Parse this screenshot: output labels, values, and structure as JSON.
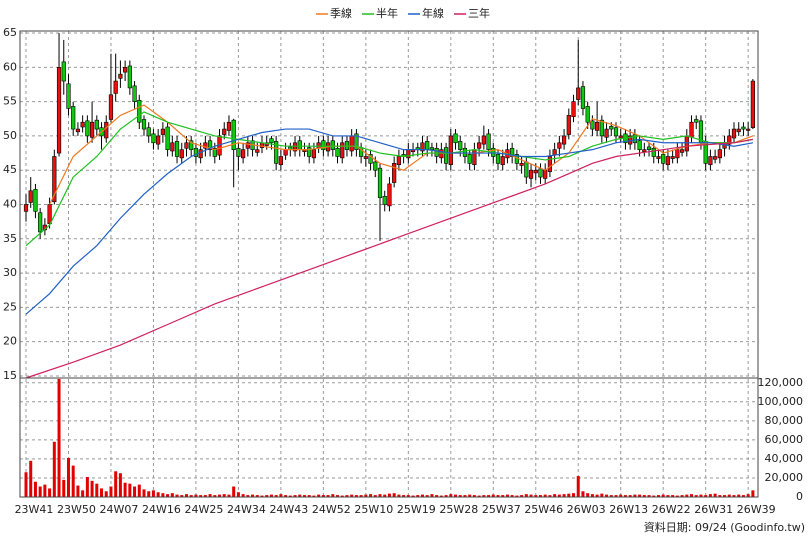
{
  "chart_data": [
    {
      "type": "candlestick",
      "legend": "top",
      "grid": true,
      "up_color": "#e81010",
      "down_color": "#10c810",
      "ylim": [
        14.7,
        65.3
      ],
      "yticks": [
        15,
        20,
        25,
        30,
        35,
        40,
        45,
        50,
        55,
        60,
        65
      ],
      "open": [
        39,
        40.3,
        42.2,
        38.8,
        36.3,
        37.2,
        40.4,
        47.5,
        60.8,
        57.6,
        54.3,
        50.6,
        51.3,
        52.2,
        49.8,
        52.3,
        51.2,
        49.7,
        52.4,
        56.2,
        58.4,
        59.3,
        60.2,
        57.3,
        55.2,
        52.4,
        51.2,
        50.3,
        48.8,
        50.2,
        51.3,
        47.8,
        49.2,
        46.8,
        48.2,
        49.3,
        48.2,
        46.8,
        48.2,
        49.3,
        48.2,
        47.2,
        50.2,
        50.8,
        52.3,
        48.2,
        46.8,
        48.2,
        49.3,
        47.6,
        48.3,
        48.6,
        49.6,
        49.2,
        45.8,
        47.2,
        48.4,
        47.8,
        49.3,
        47.7,
        48.3,
        46.8,
        48.2,
        49.3,
        47.8,
        49.3,
        48.2,
        46.8,
        49.2,
        47.8,
        50.3,
        48.3,
        46.7,
        47.3,
        46.2,
        45.3,
        41.2,
        39.8,
        43.2,
        45.8,
        47.3,
        46.8,
        47.7,
        48.3,
        47.8,
        49.2,
        48.3,
        48.2,
        46.8,
        48.3,
        45.8,
        50.3,
        49.2,
        48.2,
        47.3,
        45.8,
        48.2,
        48.8,
        50.3,
        48.2,
        47.3,
        45.8,
        46.8,
        48.2,
        47.3,
        45.7,
        46.2,
        43.8,
        44.6,
        45.2,
        43.8,
        44.8,
        47.2,
        48.2,
        48.8,
        50.2,
        52.8,
        55.3,
        57.2,
        54.3,
        52.2,
        50.8,
        52.3,
        49.8,
        51.4,
        51.2,
        49.7,
        50.3,
        48.8,
        50.2,
        49.3,
        47.7,
        48.4,
        48.2,
        46.7,
        47.3,
        45.8,
        46.7,
        46.8,
        47.6,
        47.8,
        49.8,
        52.4,
        52.2,
        49.2,
        45.8,
        46.6,
        46.8,
        48.2,
        48.8,
        49.7,
        50.6,
        51.3,
        50.8,
        51.2
      ],
      "high": [
        41.5,
        44,
        43,
        39.5,
        38,
        41,
        48,
        65,
        64,
        59,
        55,
        52,
        53,
        53,
        55,
        53,
        52,
        53,
        62,
        62,
        61,
        61,
        61,
        58,
        56,
        53,
        52,
        51,
        51,
        52,
        52,
        50,
        50,
        49,
        50,
        50,
        49,
        49,
        50,
        50,
        49,
        51,
        52,
        53,
        52.5,
        49,
        49,
        50,
        50,
        49,
        50,
        50,
        50,
        50,
        48,
        49,
        49,
        50,
        50,
        49,
        49,
        49,
        50,
        50,
        50,
        50,
        49,
        50,
        50,
        51,
        51,
        49,
        48,
        48,
        47,
        46,
        42,
        44,
        47,
        48,
        48,
        49,
        49,
        49,
        50,
        50,
        49,
        49,
        49,
        49,
        51,
        51,
        50,
        49,
        48,
        49,
        50,
        51.5,
        51,
        49,
        48,
        48,
        49,
        49,
        48,
        47,
        47,
        46,
        46,
        46,
        46,
        48,
        49,
        50,
        51,
        54,
        56,
        64,
        58,
        55,
        53,
        55,
        53,
        52,
        52,
        52,
        51,
        51,
        51,
        51,
        50,
        49,
        49,
        49,
        48,
        48,
        48,
        48,
        49,
        49,
        51,
        53,
        53,
        53,
        50,
        48,
        48,
        49,
        50,
        51,
        52,
        52,
        52,
        52,
        58.3
      ],
      "low": [
        37.5,
        39.5,
        38,
        35,
        35.5,
        36.5,
        40,
        47,
        56,
        53,
        50,
        50,
        50.5,
        49,
        49,
        50,
        48,
        49,
        52,
        55,
        57,
        58,
        56,
        54,
        51,
        50,
        49,
        48,
        48,
        49,
        47,
        47,
        46,
        46,
        47,
        47,
        46,
        46,
        47,
        47,
        46,
        46.5,
        49.5,
        50,
        42.5,
        45,
        46,
        47,
        47,
        47,
        47.5,
        48,
        48,
        45,
        45,
        46.5,
        47,
        47,
        47,
        47,
        46,
        46,
        47.5,
        47,
        47,
        47,
        46,
        46,
        47,
        47,
        47,
        46,
        45.5,
        45,
        44,
        34.7,
        39,
        39,
        42.5,
        45,
        46,
        46,
        47,
        47,
        47,
        47,
        47,
        46,
        46,
        45,
        45,
        48,
        47,
        46,
        45,
        45,
        47,
        48,
        47,
        46,
        45,
        45,
        46,
        46,
        45,
        44.5,
        43,
        42.5,
        43.5,
        43,
        43,
        44,
        46,
        47,
        48,
        49.5,
        52,
        54.5,
        53,
        51,
        50,
        50,
        49,
        49,
        50,
        49,
        49,
        48,
        48,
        48,
        47,
        47,
        47,
        46,
        46,
        45,
        45,
        46,
        46,
        47,
        47,
        49,
        51,
        48,
        45,
        45,
        46,
        46,
        47,
        48,
        49,
        50,
        50,
        50,
        51
      ],
      "close": [
        40,
        42,
        39,
        36,
        37,
        40,
        47,
        60,
        58,
        54,
        51,
        51,
        52,
        50,
        52,
        51,
        50,
        52,
        56,
        58,
        59,
        60,
        57,
        55,
        52,
        51,
        50,
        49,
        50,
        51,
        48,
        49,
        47,
        48,
        49,
        48,
        47,
        48,
        49,
        48,
        47,
        50,
        51,
        52,
        48,
        47,
        48,
        49,
        48,
        48,
        49,
        49,
        49,
        46,
        47,
        48,
        48,
        49,
        48,
        48,
        47,
        48,
        49,
        48,
        49,
        48,
        47,
        49,
        48,
        50,
        48,
        47,
        47,
        46,
        45,
        41,
        40,
        43,
        46,
        47,
        47,
        48,
        48,
        48,
        49,
        48,
        48,
        47,
        48,
        46,
        50,
        49,
        48,
        47,
        46,
        48,
        49,
        50,
        48,
        47,
        46,
        47,
        48,
        47,
        46,
        46,
        44,
        45,
        45,
        44,
        45,
        47,
        48,
        49,
        50,
        53,
        55,
        57,
        54,
        52,
        51,
        52,
        50,
        51,
        51,
        50,
        50,
        49,
        50,
        49,
        48,
        48,
        48,
        47,
        47,
        46,
        47,
        47,
        48,
        48,
        50,
        52,
        52,
        49,
        46,
        47,
        47,
        48,
        49,
        50,
        51,
        51,
        51,
        51,
        58
      ],
      "series": [
        {
          "name": "季線",
          "color": "#f07820",
          "x": [
            5,
            10,
            15,
            20,
            25,
            30,
            35,
            40,
            45,
            50,
            55,
            60,
            65,
            70,
            75,
            80,
            85,
            90,
            95,
            100,
            105,
            110,
            115,
            120,
            125,
            130,
            135,
            140,
            145,
            150,
            154
          ],
          "values": [
            40,
            47,
            50,
            53,
            54.5,
            52,
            49,
            48,
            49,
            48.5,
            48,
            48,
            48.5,
            48.5,
            46,
            45,
            47.5,
            47.5,
            47.5,
            48,
            46.5,
            45,
            47.5,
            52.5,
            51.5,
            50,
            47.5,
            48.5,
            49,
            49,
            50
          ]
        },
        {
          "name": "半年",
          "color": "#20c020",
          "x": [
            0,
            5,
            10,
            15,
            20,
            25,
            30,
            35,
            40,
            45,
            50,
            55,
            60,
            65,
            70,
            75,
            80,
            85,
            90,
            95,
            100,
            105,
            110,
            115,
            120,
            125,
            130,
            135,
            140,
            145,
            150,
            154
          ],
          "values": [
            34,
            37,
            44,
            47,
            51,
            53.5,
            52,
            51,
            50,
            49.5,
            49,
            48.5,
            48.5,
            48.5,
            48.5,
            47.5,
            47,
            47.5,
            47.5,
            48,
            47.5,
            47,
            46.5,
            47,
            48.5,
            49.5,
            50,
            49.5,
            50,
            49,
            49,
            49.5
          ]
        },
        {
          "name": "年線",
          "color": "#2060c8",
          "x": [
            0,
            5,
            10,
            15,
            20,
            25,
            30,
            35,
            40,
            45,
            50,
            55,
            60,
            65,
            70,
            75,
            80,
            85,
            90,
            95,
            100,
            105,
            110,
            115,
            120,
            125,
            130,
            135,
            140,
            145,
            150,
            154
          ],
          "values": [
            24,
            27,
            31,
            34,
            38,
            41.5,
            44.5,
            47,
            48.5,
            49.5,
            50.5,
            51,
            51,
            50,
            50,
            49,
            48,
            48,
            47.5,
            47.5,
            47.5,
            47,
            47,
            47.5,
            48,
            49,
            49.5,
            49,
            49,
            49,
            48.5,
            49
          ]
        },
        {
          "name": "三年",
          "color": "#d02060",
          "x": [
            0,
            10,
            20,
            30,
            40,
            50,
            60,
            70,
            80,
            90,
            100,
            110,
            115,
            120,
            125,
            130,
            140,
            150,
            154
          ],
          "values": [
            14.7,
            17,
            19.5,
            22.5,
            25.5,
            28,
            30.5,
            33,
            35.5,
            38,
            40.5,
            43,
            44.5,
            46,
            47,
            47.5,
            48.5,
            49,
            49.5
          ]
        }
      ]
    },
    {
      "type": "bar",
      "grid": true,
      "color": "#e00000",
      "categories": [
        "23W41",
        null,
        null,
        null,
        null,
        null,
        null,
        null,
        null,
        "23W50",
        null,
        null,
        null,
        null,
        null,
        null,
        null,
        null,
        "24W07",
        null,
        null,
        null,
        null,
        null,
        null,
        null,
        null,
        "24W16",
        null,
        null,
        null,
        null,
        null,
        null,
        null,
        null,
        "24W25",
        null,
        null,
        null,
        null,
        null,
        null,
        null,
        null,
        "24W34",
        null,
        null,
        null,
        null,
        null,
        null,
        null,
        null,
        "24W43",
        null,
        null,
        null,
        null,
        null,
        null,
        null,
        null,
        "24W52",
        null,
        null,
        null,
        null,
        null,
        null,
        null,
        null,
        "25W10",
        null,
        null,
        null,
        null,
        null,
        null,
        null,
        null,
        "25W19",
        null,
        null,
        null,
        null,
        null,
        null,
        null,
        null,
        "25W28",
        null,
        null,
        null,
        null,
        null,
        null,
        null,
        null,
        "25W37",
        null,
        null,
        null,
        null,
        null,
        null,
        null,
        null,
        "25W46",
        null,
        null,
        null,
        null,
        null,
        null,
        null,
        null,
        "26W03",
        null,
        null,
        null,
        null,
        null,
        null,
        null,
        null,
        "26W13",
        null,
        null,
        null,
        null,
        null,
        null,
        null,
        null,
        "26W22",
        null,
        null,
        null,
        null,
        null,
        null,
        null,
        null,
        "26W31",
        null,
        null,
        null,
        null,
        null,
        null,
        null,
        null,
        "26W39",
        null
      ],
      "values": [
        26000,
        38000,
        16000,
        11000,
        13000,
        9000,
        58000,
        124000,
        18000,
        41000,
        33000,
        12000,
        7000,
        21000,
        17000,
        14000,
        9000,
        6000,
        11000,
        27000,
        25000,
        15000,
        14000,
        11000,
        13000,
        8000,
        6000,
        7000,
        5000,
        4000,
        3000,
        4000,
        2500,
        2000,
        3000,
        2000,
        2500,
        2000,
        2000,
        3000,
        2000,
        2500,
        3000,
        2500,
        11000,
        5000,
        3000,
        2000,
        2500,
        2000,
        1500,
        2000,
        2500,
        2000,
        3000,
        2000,
        1500,
        2000,
        2500,
        2000,
        2000,
        1500,
        2500,
        2000,
        2000,
        3000,
        2000,
        1500,
        2000,
        2500,
        2000,
        2000,
        2500,
        3000,
        2000,
        3000,
        2500,
        3500,
        4000,
        2500,
        2000,
        2000,
        1500,
        2000,
        2500,
        2000,
        3000,
        2000,
        1500,
        2000,
        3000,
        2500,
        2000,
        2000,
        2500,
        2000,
        1500,
        2000,
        2000,
        2500,
        2000,
        2000,
        2500,
        2000,
        1500,
        2000,
        3000,
        2500,
        2000,
        2000,
        2500,
        2000,
        3000,
        2500,
        3000,
        3500,
        4000,
        22000,
        6000,
        4000,
        3000,
        2500,
        3500,
        2500,
        2000,
        2000,
        2500,
        2000,
        2000,
        2500,
        2500,
        2000,
        2000,
        1500,
        2000,
        2500,
        2000,
        2000,
        1500,
        2000,
        2500,
        3000,
        2000,
        2500,
        2000,
        3000,
        3500,
        2000,
        2000,
        2500,
        2000,
        2500,
        2000,
        3000,
        7000
      ],
      "ylim": [
        0,
        125000
      ],
      "yticks": [
        0,
        {
          "value": 20000,
          "label": "20,000"
        },
        {
          "value": 40000,
          "label": "40,000"
        },
        {
          "value": 60000,
          "label": "60,000"
        },
        {
          "value": 80000,
          "label": "80,000"
        },
        {
          "value": 100000,
          "label": "100,000"
        },
        {
          "value": 120000,
          "label": "120,000"
        }
      ]
    }
  ],
  "source": "資料日期: 09/24 (Goodinfo.tw)"
}
